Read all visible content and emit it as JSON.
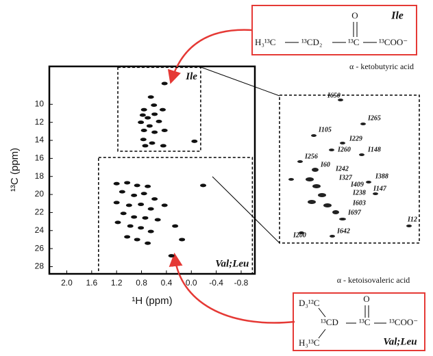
{
  "chart_data": {
    "type": "scatter",
    "x_label": "¹H (ppm)",
    "y_label": "¹³C (ppm)",
    "xlim": [
      2.28,
      -1.02
    ],
    "ylim": [
      28.8,
      5.8
    ],
    "xticks": [
      {
        "value": 2,
        "label": "2.0"
      },
      1.6,
      1.2,
      0.8,
      0.4,
      {
        "value": 0,
        "label": "0.0"
      },
      -0.4,
      -0.8
    ],
    "yticks": [
      10,
      12,
      14,
      16,
      18,
      20,
      22,
      24,
      26,
      28
    ],
    "color": "#111111",
    "x": [
      0.43,
      0.65,
      0.6,
      0.76,
      0.78,
      0.7,
      0.59,
      0.46,
      0.81,
      0.67,
      0.52,
      0.76,
      0.59,
      0.43,
      0.77,
      0.63,
      0.45,
      0.74,
      -0.05,
      1.2,
      1.03,
      0.87,
      0.7,
      1.11,
      0.92,
      0.76,
      0.59,
      1.2,
      1.0,
      0.81,
      0.65,
      1.09,
      0.92,
      0.74,
      0.54,
      1.18,
      0.98,
      0.81,
      0.65,
      1.03,
      0.87,
      0.7,
      0.43,
      0.26,
      0.15,
      0.32,
      -0.19
    ],
    "values": [
      7.7,
      9.2,
      10.1,
      10.6,
      11.2,
      11.5,
      11.1,
      10.6,
      12.0,
      12.4,
      11.9,
      12.9,
      13.1,
      12.9,
      13.9,
      14.3,
      14.6,
      14.6,
      14.1,
      18.8,
      18.7,
      19.0,
      19.1,
      19.7,
      20.1,
      19.9,
      20.5,
      20.9,
      21.2,
      21.1,
      21.6,
      22.1,
      22.5,
      22.6,
      22.8,
      23.1,
      23.5,
      23.7,
      24.1,
      24.7,
      25.0,
      25.4,
      21.2,
      23.5,
      25.0,
      26.8,
      19.0
    ],
    "regions": [
      {
        "label": "Ile",
        "xlim": [
          1.18,
          -0.15
        ],
        "ylim": [
          15.2,
          5.9
        ]
      },
      {
        "label": "Val;Leu",
        "xlim": [
          1.49,
          -0.98
        ],
        "ylim": [
          28.8,
          15.9
        ]
      }
    ],
    "inset_labels": [
      "I650",
      "I265",
      "I105",
      "I229",
      "I260",
      "I148",
      "I256",
      "I60",
      "I242",
      "I388",
      "I327",
      "I409",
      "I147",
      "I238",
      "I603",
      "I697",
      "I12",
      "I200",
      "I642"
    ]
  },
  "top_structure": {
    "label": "Ile",
    "atoms": [
      "H₃¹³C",
      "¹³CD₂",
      "¹³C",
      "¹³COO⁻",
      "O"
    ],
    "caption": "α - ketobutyric acid"
  },
  "bottom_structure": {
    "label": "Val;Leu",
    "atoms": [
      "D₃¹²C",
      "¹³CD",
      "¹³C",
      "¹³COO⁻",
      "O",
      "H₃¹³C"
    ],
    "caption": "α - ketoisovaleric acid"
  }
}
